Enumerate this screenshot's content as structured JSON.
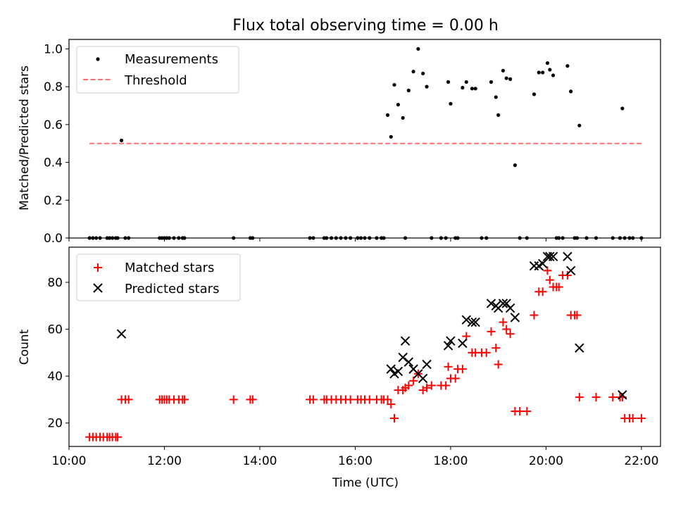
{
  "title": "Flux total observing time = 0.00 h",
  "chart_data": [
    {
      "type": "scatter",
      "ylabel": "Matched/Predicted stars",
      "xlim": [
        10.0,
        22.4
      ],
      "ylim": [
        0,
        1.05
      ],
      "grid": false,
      "legend_placement": "top-left",
      "yticks": [
        0.0,
        0.2,
        0.4,
        0.6,
        0.8,
        1.0
      ],
      "ytick_labels": [
        "0.0",
        "0.2",
        "0.4",
        "0.6",
        "0.8",
        "1.0"
      ],
      "series": [
        {
          "name": "Measurements",
          "marker": "dot",
          "color": "#000000",
          "x": [
            10.43,
            10.5,
            10.57,
            10.65,
            10.8,
            10.85,
            10.91,
            10.98,
            11.02,
            11.1,
            11.18,
            11.25,
            11.9,
            11.95,
            12.0,
            12.05,
            12.1,
            12.2,
            12.3,
            12.38,
            12.42,
            13.45,
            13.8,
            13.85,
            15.05,
            15.12,
            15.35,
            15.4,
            15.5,
            15.6,
            15.7,
            15.8,
            15.9,
            16.05,
            16.12,
            16.2,
            16.3,
            16.45,
            16.55,
            16.6,
            16.68,
            16.75,
            16.82,
            16.9,
            17.0,
            17.05,
            17.12,
            17.22,
            17.32,
            17.42,
            17.5,
            17.6,
            17.8,
            17.9,
            17.95,
            18.0,
            18.1,
            18.15,
            18.25,
            18.33,
            18.45,
            18.52,
            18.65,
            18.75,
            18.85,
            18.95,
            19.0,
            19.1,
            19.17,
            19.25,
            19.35,
            19.45,
            19.6,
            19.75,
            19.85,
            19.93,
            20.03,
            20.08,
            20.15,
            20.22,
            20.27,
            20.35,
            20.45,
            20.52,
            20.6,
            20.65,
            20.7,
            20.85,
            21.05,
            21.4,
            21.55,
            21.6,
            21.65,
            21.75,
            21.82,
            22.0
          ],
          "y": [
            0,
            0,
            0,
            0,
            0,
            0,
            0,
            0,
            0,
            0.516,
            0,
            0,
            0,
            0,
            0,
            0,
            0,
            0,
            0,
            0,
            0,
            0,
            0,
            0,
            0,
            0,
            0,
            0,
            0,
            0,
            0,
            0,
            0,
            0,
            0,
            0,
            0,
            0,
            0,
            0,
            0.65,
            0.535,
            0.81,
            0.705,
            0.635,
            0,
            0.78,
            0.88,
            1.0,
            0.87,
            0.8,
            0,
            0,
            0,
            0.825,
            0.71,
            0,
            0,
            0.795,
            0.825,
            0.79,
            0.79,
            0,
            0,
            0.825,
            0.745,
            0.65,
            0.885,
            0.845,
            0.84,
            0.385,
            0,
            0,
            0.76,
            0.875,
            0.875,
            0.925,
            0.89,
            0.86,
            0,
            0,
            0,
            0.91,
            0.775,
            0,
            0,
            0.595,
            0,
            0,
            0,
            0,
            0.685,
            0,
            0,
            0,
            0
          ]
        },
        {
          "name": "Threshold",
          "style": "dashed",
          "color": "#ff7070",
          "x": [
            10.43,
            22.0
          ],
          "y": [
            0.5,
            0.5
          ]
        }
      ]
    },
    {
      "type": "scatter",
      "xlabel": "Time (UTC)",
      "ylabel": "Count",
      "xlim": [
        10.0,
        22.4
      ],
      "ylim": [
        10,
        95
      ],
      "grid": false,
      "legend_placement": "top-left",
      "xticks": [
        10,
        12,
        14,
        16,
        18,
        20,
        22
      ],
      "xtick_labels": [
        "10:00",
        "12:00",
        "14:00",
        "16:00",
        "18:00",
        "20:00",
        "22:00"
      ],
      "yticks": [
        20,
        40,
        60,
        80
      ],
      "ytick_labels": [
        "20",
        "40",
        "60",
        "80"
      ],
      "series": [
        {
          "name": "Matched stars",
          "marker": "plus",
          "color": "#ff0000",
          "x": [
            10.43,
            10.5,
            10.57,
            10.65,
            10.72,
            10.8,
            10.85,
            10.91,
            10.98,
            11.02,
            11.1,
            11.18,
            11.25,
            11.9,
            11.95,
            12.0,
            12.05,
            12.1,
            12.2,
            12.3,
            12.38,
            12.42,
            13.45,
            13.8,
            13.85,
            15.05,
            15.12,
            15.35,
            15.4,
            15.5,
            15.6,
            15.7,
            15.8,
            15.9,
            16.05,
            16.12,
            16.2,
            16.3,
            16.45,
            16.55,
            16.6,
            16.68,
            16.75,
            16.82,
            16.9,
            17.0,
            17.05,
            17.12,
            17.22,
            17.32,
            17.42,
            17.5,
            17.6,
            17.8,
            17.9,
            17.95,
            18.0,
            18.1,
            18.15,
            18.25,
            18.33,
            18.45,
            18.52,
            18.65,
            18.75,
            18.85,
            18.95,
            19.0,
            19.1,
            19.17,
            19.25,
            19.35,
            19.45,
            19.6,
            19.75,
            19.85,
            19.93,
            20.03,
            20.08,
            20.15,
            20.22,
            20.27,
            20.35,
            20.45,
            20.52,
            20.6,
            20.65,
            20.7,
            21.05,
            21.4,
            21.55,
            21.6,
            21.65,
            21.75,
            21.82,
            22.0
          ],
          "y": [
            14,
            14,
            14,
            14,
            14,
            14,
            14,
            14,
            14,
            14,
            30,
            30,
            30,
            30,
            30,
            30,
            30,
            30,
            30,
            30,
            30,
            30,
            30,
            30,
            30,
            30,
            30,
            30,
            30,
            30,
            30,
            30,
            30,
            30,
            30,
            30,
            30,
            30,
            30,
            30,
            30,
            30,
            28,
            22,
            34,
            34,
            35,
            36,
            38,
            41,
            34,
            35,
            36,
            36,
            36,
            44,
            39,
            39,
            43,
            43,
            57,
            50,
            50,
            50,
            50,
            59,
            52,
            45,
            63,
            60,
            58,
            25,
            25,
            25,
            66,
            76,
            76,
            85,
            81,
            78,
            78,
            78,
            83,
            83,
            66,
            66,
            66,
            31,
            31,
            31,
            31,
            31,
            22,
            22,
            22,
            22
          ]
        },
        {
          "name": "Predicted stars",
          "marker": "x",
          "color": "#000000",
          "x": [
            11.1,
            16.75,
            16.82,
            16.9,
            17.0,
            17.05,
            17.12,
            17.22,
            17.32,
            17.42,
            17.5,
            17.95,
            18.0,
            18.25,
            18.33,
            18.45,
            18.52,
            18.85,
            18.95,
            19.0,
            19.1,
            19.17,
            19.25,
            19.35,
            19.75,
            19.85,
            19.93,
            20.03,
            20.08,
            20.15,
            20.45,
            20.52,
            20.7,
            21.6
          ],
          "y": [
            58,
            43,
            41,
            42,
            48,
            55,
            46,
            43,
            41,
            39,
            45,
            53,
            55,
            54,
            64,
            63,
            63,
            71,
            70,
            69,
            71,
            71,
            69,
            65,
            87,
            87,
            88,
            91,
            91,
            91,
            91,
            85,
            52,
            32
          ]
        }
      ]
    }
  ]
}
